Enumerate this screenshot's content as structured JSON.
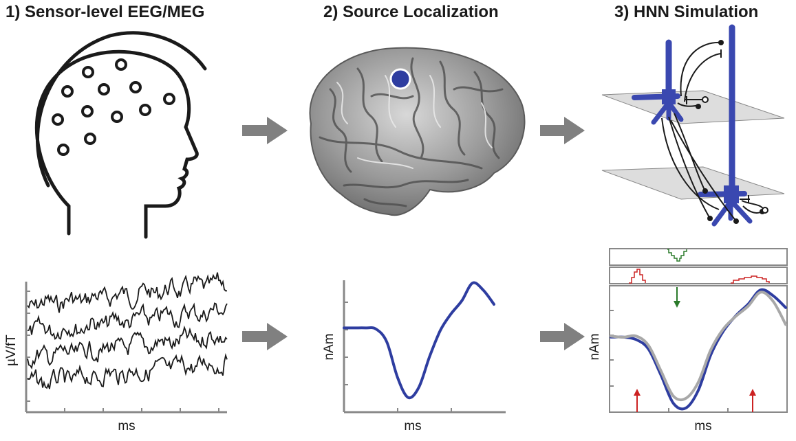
{
  "panels": [
    {
      "title": "1) Sensor-level EEG/MEG"
    },
    {
      "title": "2) Source Localization"
    },
    {
      "title": "3) HNN Simulation"
    }
  ],
  "sensor_plot": {
    "ylabel": "µV/fT",
    "xlabel": "ms",
    "traces": 4
  },
  "source_plot": {
    "ylabel": "nAm",
    "xlabel": "ms"
  },
  "hnn_plot": {
    "ylabel": "nAm",
    "xlabel": "ms"
  },
  "colors": {
    "dipole_blue": "#2e3da0",
    "cell_blue": "#3a48b0",
    "sim_gray": "#a8a8a8",
    "input_red": "#cc2222",
    "input_green": "#2a7a2a",
    "arrow_gray": "#808080",
    "text": "#1a1a1a"
  },
  "chart_data": [
    {
      "type": "line",
      "title": "",
      "xlabel": "ms",
      "ylabel": "nAm",
      "series": [
        {
          "values": [
            0.62,
            0.62,
            0.62,
            0.61,
            0.5,
            0.2,
            0.03,
            0.12,
            0.38,
            0.6,
            0.74,
            0.85,
            1.0,
            0.94,
            0.82
          ]
        }
      ]
    },
    {
      "type": "line",
      "title": "",
      "xlabel": "ms",
      "ylabel": "nAm",
      "series": [
        {
          "values": [
            0.6,
            0.6,
            0.58,
            0.5,
            0.28,
            0.04,
            0.0,
            0.15,
            0.45,
            0.65,
            0.78,
            0.88,
            1.0,
            0.95,
            0.85
          ]
        },
        {
          "values": [
            0.6,
            0.59,
            0.6,
            0.52,
            0.3,
            0.08,
            0.06,
            0.2,
            0.48,
            0.66,
            0.77,
            0.86,
            0.98,
            0.9,
            0.7
          ]
        }
      ]
    }
  ]
}
